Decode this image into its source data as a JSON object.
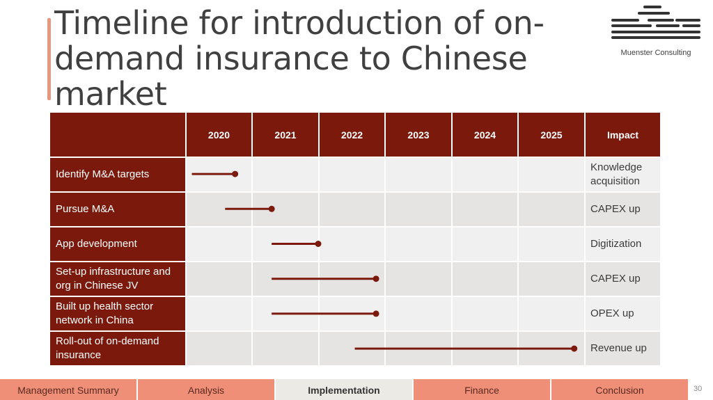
{
  "title": "Timeline for introduction of on-demand insurance to Chinese market",
  "logo": {
    "name": "Muenster Consulting"
  },
  "table": {
    "header": {
      "corner": "",
      "years": [
        "2020",
        "2021",
        "2022",
        "2023",
        "2024",
        "2025"
      ],
      "impact": "Impact"
    },
    "rows": [
      {
        "task": "Identify M&A targets",
        "impact": "Knowledge acquisition",
        "start": 2020.1,
        "end": 2020.75
      },
      {
        "task": "Pursue M&A",
        "impact": "CAPEX up",
        "start": 2020.6,
        "end": 2021.3
      },
      {
        "task": "App development",
        "impact": "Digitization",
        "start": 2021.3,
        "end": 2022.0
      },
      {
        "task": "Set-up infrastructure and org in Chinese JV",
        "impact": "CAPEX up",
        "start": 2021.3,
        "end": 2022.87
      },
      {
        "task": "Built up health sector network in China",
        "impact": "OPEX up",
        "start": 2021.3,
        "end": 2022.87
      },
      {
        "task": "Roll-out of on-demand insurance",
        "impact": "Revenue up",
        "start": 2022.55,
        "end": 2025.85
      }
    ]
  },
  "colors": {
    "accent": "#7b1a0c",
    "nav": "#ef8f78",
    "nav_active": "#eceae5"
  },
  "nav": {
    "tabs": [
      "Management Summary",
      "Analysis",
      "Implementation",
      "Finance",
      "Conclusion"
    ],
    "active": "Implementation"
  },
  "page_number": "30"
}
